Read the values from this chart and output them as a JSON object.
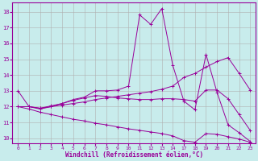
{
  "xlabel": "Windchill (Refroidissement éolien,°C)",
  "bg_color": "#c8ecec",
  "line_color": "#990099",
  "grid_color": "#b0b0b0",
  "xlabels": [
    "0",
    "1",
    "2",
    "3",
    "4",
    "5",
    "6",
    "7",
    "8",
    "9",
    "10",
    "11",
    "12",
    "13",
    "14",
    "17",
    "18",
    "19",
    "20",
    "21",
    "22",
    "23"
  ],
  "ylim": [
    9.7,
    18.6
  ],
  "yticks": [
    10,
    11,
    12,
    13,
    14,
    15,
    16,
    17,
    18
  ],
  "line1_y": [
    13.0,
    12.0,
    11.85,
    12.0,
    12.2,
    12.45,
    12.6,
    13.0,
    13.0,
    13.05,
    13.3,
    17.8,
    17.2,
    18.2,
    14.6,
    12.35,
    11.8,
    15.3,
    12.9,
    10.85,
    10.35,
    9.8
  ],
  "line2_y": [
    12.0,
    12.0,
    11.9,
    12.05,
    12.2,
    12.4,
    12.55,
    12.7,
    12.65,
    12.55,
    12.5,
    12.45,
    12.45,
    12.5,
    12.5,
    12.45,
    12.35,
    13.05,
    13.05,
    12.5,
    11.5,
    10.5
  ],
  "line3_y": [
    12.0,
    12.0,
    11.9,
    12.0,
    12.1,
    12.2,
    12.3,
    12.45,
    12.55,
    12.65,
    12.75,
    12.85,
    12.95,
    13.1,
    13.3,
    13.85,
    14.1,
    14.5,
    14.85,
    15.1,
    14.1,
    13.05
  ],
  "line4_y": [
    12.0,
    11.85,
    11.65,
    11.5,
    11.35,
    11.2,
    11.1,
    10.95,
    10.85,
    10.72,
    10.6,
    10.5,
    10.4,
    10.3,
    10.15,
    9.85,
    9.75,
    10.3,
    10.25,
    10.1,
    9.95,
    9.75
  ]
}
